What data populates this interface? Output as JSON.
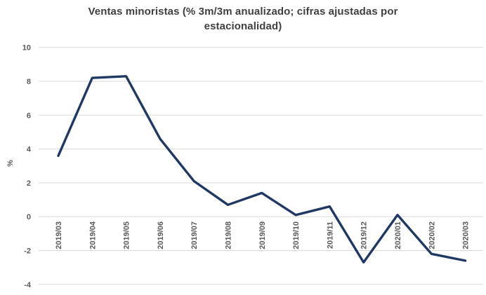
{
  "chart_data": {
    "type": "line",
    "title": "Ventas minoristas (% 3m/3m anualizado; cifras ajustadas por estacionalidad)",
    "xlabel": "",
    "ylabel": "%",
    "categories": [
      "2019/03",
      "2019/04",
      "2019/05",
      "2019/06",
      "2019/07",
      "2019/08",
      "2019/09",
      "2019/10",
      "2019/11",
      "2019/12",
      "2020/01",
      "2020/02",
      "2020/03"
    ],
    "values": [
      3.6,
      8.2,
      8.3,
      4.6,
      2.1,
      0.7,
      1.4,
      0.1,
      0.6,
      -2.7,
      0.1,
      -2.2,
      -2.6
    ],
    "ylim": [
      -4,
      10
    ],
    "yticks": [
      10,
      8,
      6,
      4,
      2,
      0,
      -2,
      -4
    ],
    "grid": true,
    "legend": false
  },
  "colors": {
    "line": "#1f3864",
    "grid": "#d9d9d9",
    "tick_text": "#595959",
    "title_text": "#404040",
    "background": "#ffffff"
  }
}
